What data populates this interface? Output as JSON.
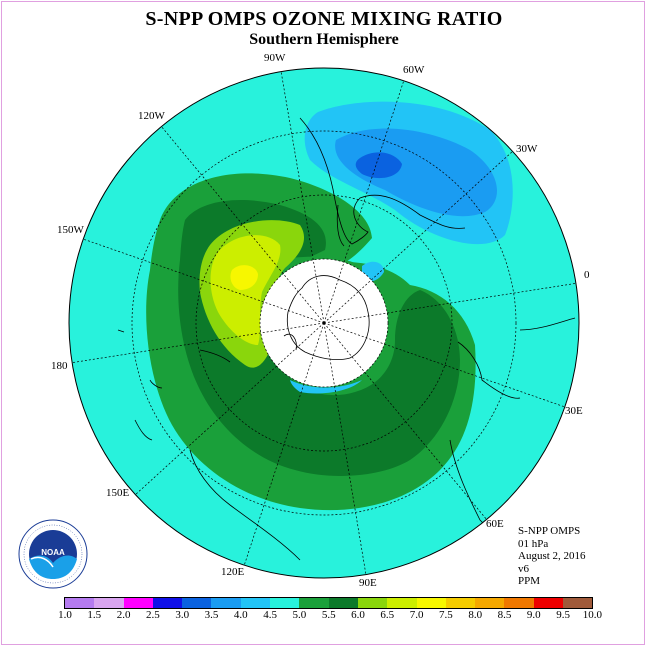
{
  "title": "S-NPP OMPS OZONE MIXING RATIO",
  "subtitle": "Southern Hemisphere",
  "longitude_labels": [
    "90W",
    "60W",
    "30W",
    "0",
    "30E",
    "60E",
    "90E",
    "120E",
    "150E",
    "180",
    "150W",
    "120W"
  ],
  "info": {
    "line1": "S-NPP OMPS",
    "line2": "01 hPa",
    "line3": "August 2, 2016",
    "line4": "v6",
    "line5": "PPM"
  },
  "logo": {
    "text": "NOAA",
    "ring_text": "NATIONAL OCEANIC AND ATMOSPHERIC ADMINISTRATION · U.S. DEPARTMENT OF COMMERCE"
  },
  "colorbar": {
    "ticks": [
      "1.0",
      "1.5",
      "2.0",
      "2.5",
      "3.0",
      "3.5",
      "4.0",
      "4.5",
      "5.0",
      "5.5",
      "6.0",
      "6.5",
      "7.0",
      "7.5",
      "8.0",
      "8.5",
      "9.0",
      "9.5",
      "10.0"
    ],
    "colors": [
      "#b57bf0",
      "#d9a5f0",
      "#ff00ff",
      "#1010e8",
      "#0a62e0",
      "#1a9cf2",
      "#22c4f6",
      "#28f2dc",
      "#1aa03a",
      "#0c7a2a",
      "#8ad60c",
      "#ccee00",
      "#f7f700",
      "#f5cc00",
      "#f5a800",
      "#f07800",
      "#ee0000",
      "#a05a3a"
    ]
  },
  "map_colors": {
    "background": "#28f2dc",
    "dark_green": "#0c7a2a",
    "green": "#1aa03a",
    "lime": "#8ad60c",
    "yellow_green": "#ccee00",
    "yellow": "#f7f700",
    "light_blue": "#22c4f6",
    "mid_blue": "#1a9cf2",
    "blue": "#0a62e0",
    "missing": "#ffffff"
  }
}
